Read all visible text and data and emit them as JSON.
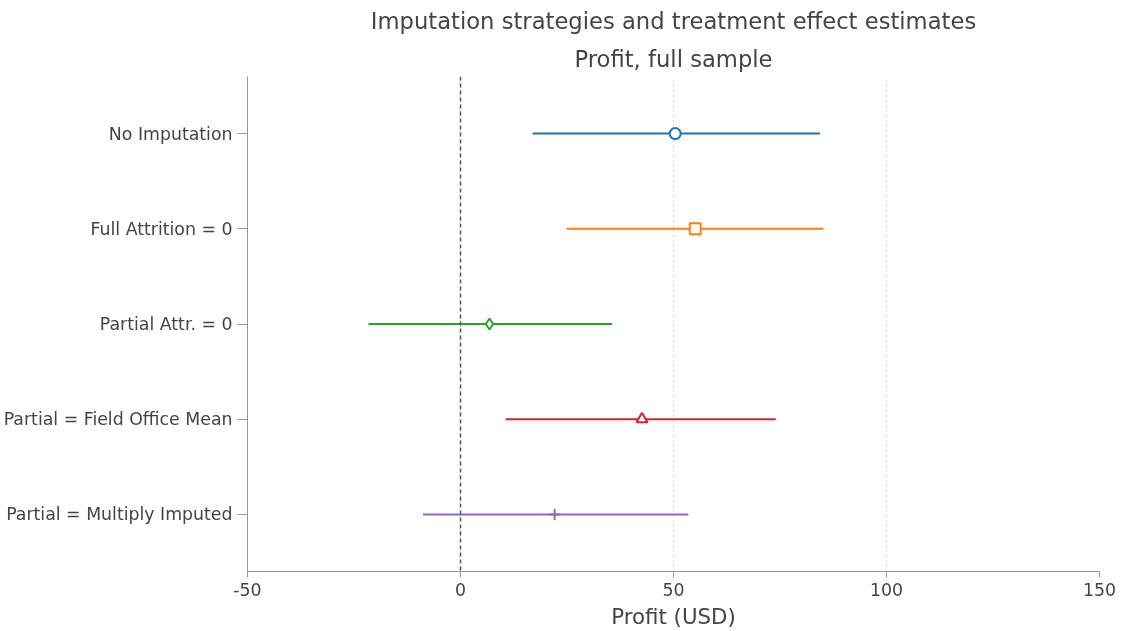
{
  "chart_data": {
    "type": "scatter",
    "orientation": "horizontal",
    "title": "Imputation strategies and treatment effect estimates",
    "subtitle": "Profit, full sample",
    "xlabel": "Profit (USD)",
    "categories": [
      "No Imputation",
      "Full Attrition = 0",
      "Partial Attr. = 0",
      "Partial = Field Office Mean",
      "Partial = Multiply Imputed"
    ],
    "series": [
      {
        "color": "#1f77b4",
        "marker": "circle",
        "values": [
          50.4,
          null,
          null,
          null,
          null
        ],
        "errors": [
          [
            16.9,
            84.4
          ],
          null,
          null,
          null,
          null
        ]
      },
      {
        "color": "#ff7f0e",
        "marker": "square",
        "values": [
          null,
          55.1,
          null,
          null,
          null
        ],
        "errors": [
          null,
          [
            24.9,
            85.2
          ],
          null,
          null,
          null
        ]
      },
      {
        "color": "#2ca02c",
        "marker": "diamond",
        "values": [
          null,
          null,
          6.8,
          null,
          null
        ],
        "errors": [
          null,
          null,
          [
            -21.6,
            35.6
          ],
          null,
          null
        ]
      },
      {
        "color": "#d62728",
        "marker": "triangle",
        "values": [
          null,
          null,
          null,
          42.6,
          null
        ],
        "errors": [
          null,
          null,
          null,
          [
            10.6,
            74.0
          ],
          null
        ]
      },
      {
        "color": "#9467bd",
        "marker": "cross",
        "values": [
          null,
          null,
          null,
          null,
          22.1
        ],
        "errors": [
          null,
          null,
          null,
          null,
          [
            -8.8,
            53.5
          ]
        ]
      }
    ],
    "xlim": [
      -50,
      150
    ],
    "xticks": [
      -50,
      0,
      50,
      100,
      150
    ],
    "grid": "x",
    "ref_lines": [
      {
        "axis": "x",
        "value": 0,
        "label": null,
        "color": "#555555",
        "line_style": "dashed"
      }
    ]
  }
}
